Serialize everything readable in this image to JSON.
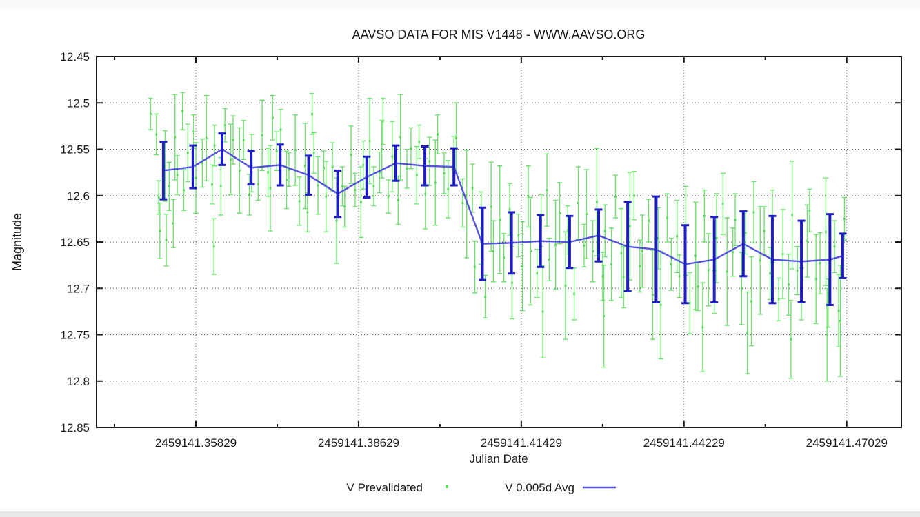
{
  "page": {
    "background": "#ffffff",
    "top_strip_color": "#fafafa",
    "bottom_strip_color": "#e9e9e9",
    "bottom_strip_border": "#c9c9c9"
  },
  "colors": {
    "axis": "#1a1a1a",
    "grid": "#555555",
    "green_point": "#55dd55",
    "green_marker": "#44d444",
    "blue_bar": "#1e1ec0",
    "blue_line": "#5353de"
  },
  "chart_data": {
    "type": "scatter",
    "title": "AAVSO DATA FOR MIS V1448 - WWW.AAVSO.ORG",
    "xlabel": "Julian Date",
    "ylabel": "Magnitude",
    "grid": true,
    "y_inverted": true,
    "jd_base": 2459141,
    "xlim": [
      0.3412,
      0.4797
    ],
    "ylim": [
      12.45,
      12.85
    ],
    "x_ticks": {
      "values": [
        0.35829,
        0.38629,
        0.41429,
        0.44229,
        0.47029
      ],
      "labels": [
        "2459141.35829",
        "2459141.38629",
        "2459141.41429",
        "2459141.44229",
        "2459141.47029"
      ]
    },
    "x_minor_ticks": [
      0.34429,
      0.37229,
      0.40029,
      0.42829,
      0.45629
    ],
    "y_ticks": {
      "values": [
        12.45,
        12.5,
        12.55,
        12.6,
        12.65,
        12.7,
        12.75,
        12.8,
        12.85
      ],
      "labels": [
        "12.45",
        "12.5",
        "12.55",
        "12.6",
        "12.65",
        "12.7",
        "12.75",
        "12.8",
        "12.85"
      ]
    },
    "legend": {
      "position": "below-xlabel",
      "items": [
        {
          "label": "V Prevalidated",
          "marker": "point",
          "color": "#55dd55"
        },
        {
          "label": "V 0.005d Avg",
          "marker": "line",
          "color": "#5353de"
        }
      ]
    },
    "series": [
      {
        "name": "V Prevalidated",
        "style": "points-with-errorbars",
        "color": "#55dd55",
        "jd": [
          0.3505,
          0.3515,
          0.3519,
          0.3521,
          0.353,
          0.3532,
          0.3537,
          0.3544,
          0.3547,
          0.3551,
          0.356,
          0.3562,
          0.3569,
          0.3579,
          0.3583,
          0.3594,
          0.3601,
          0.3611,
          0.3614,
          0.3615,
          0.3626,
          0.3633,
          0.3643,
          0.3647,
          0.3658,
          0.3665,
          0.3675,
          0.3679,
          0.369,
          0.3697,
          0.3707,
          0.3711,
          0.3715,
          0.3722,
          0.3729,
          0.3739,
          0.3743,
          0.3754,
          0.3761,
          0.3771,
          0.3775,
          0.3783,
          0.3786,
          0.3793,
          0.3803,
          0.3807,
          0.3818,
          0.3825,
          0.3835,
          0.3839,
          0.385,
          0.3857,
          0.3867,
          0.3871,
          0.3882,
          0.3889,
          0.3899,
          0.3903,
          0.3905,
          0.3914,
          0.3921,
          0.3931,
          0.3935,
          0.3946,
          0.3953,
          0.3963,
          0.3967,
          0.3978,
          0.3985,
          0.3995,
          0.3999,
          0.401,
          0.4017,
          0.4027,
          0.4031,
          0.4042,
          0.4049,
          0.4059,
          0.4063,
          0.4074,
          0.4081,
          0.4091,
          0.4095,
          0.4106,
          0.4113,
          0.4123,
          0.4127,
          0.4138,
          0.4145,
          0.4155,
          0.4159,
          0.417,
          0.4177,
          0.418,
          0.4187,
          0.4191,
          0.4202,
          0.4209,
          0.4219,
          0.4223,
          0.4234,
          0.4241,
          0.4251,
          0.4255,
          0.4266,
          0.4273,
          0.4283,
          0.4285,
          0.4287,
          0.4298,
          0.4305,
          0.4315,
          0.4319,
          0.433,
          0.4337,
          0.4347,
          0.4351,
          0.4362,
          0.4369,
          0.4379,
          0.4383,
          0.4394,
          0.4401,
          0.4411,
          0.4415,
          0.4426,
          0.4433,
          0.4443,
          0.4447,
          0.4455,
          0.4458,
          0.4465,
          0.4475,
          0.4479,
          0.449,
          0.4497,
          0.4507,
          0.4511,
          0.4522,
          0.4529,
          0.4532,
          0.4539,
          0.4543,
          0.4554,
          0.4561,
          0.4571,
          0.4575,
          0.4586,
          0.4593,
          0.4603,
          0.4607,
          0.4609,
          0.4618,
          0.4625,
          0.4635,
          0.4639,
          0.465,
          0.4657,
          0.4667,
          0.4669,
          0.4671,
          0.4682,
          0.4689,
          0.4692,
          0.4699
        ],
        "mag": [
          12.512,
          12.534,
          12.602,
          12.638,
          12.568,
          12.648,
          12.59,
          12.63,
          12.537,
          12.578,
          12.509,
          12.594,
          12.554,
          12.531,
          12.581,
          12.565,
          12.538,
          12.588,
          12.655,
          12.546,
          12.59,
          12.524,
          12.561,
          12.54,
          12.573,
          12.54,
          12.599,
          12.565,
          12.587,
          12.535,
          12.575,
          12.592,
          12.516,
          12.552,
          12.529,
          12.583,
          12.572,
          12.551,
          12.606,
          12.568,
          12.618,
          12.512,
          12.554,
          12.589,
          12.57,
          12.601,
          12.569,
          12.627,
          12.59,
          12.612,
          12.556,
          12.594,
          12.607,
          12.567,
          12.541,
          12.59,
          12.575,
          12.55,
          12.52,
          12.601,
          12.558,
          12.605,
          12.537,
          12.571,
          12.549,
          12.578,
          12.542,
          12.598,
          12.563,
          12.586,
          12.534,
          12.576,
          12.593,
          12.554,
          12.538,
          12.608,
          12.609,
          12.592,
          12.677,
          12.635,
          12.709,
          12.612,
          12.66,
          12.626,
          12.667,
          12.615,
          12.694,
          12.643,
          12.676,
          12.601,
          12.66,
          12.684,
          12.627,
          12.725,
          12.594,
          12.669,
          12.653,
          12.619,
          12.697,
          12.637,
          12.706,
          12.608,
          12.654,
          12.62,
          12.66,
          12.607,
          12.687,
          12.73,
          12.638,
          12.674,
          12.601,
          12.662,
          12.688,
          12.633,
          12.6,
          12.676,
          12.66,
          12.627,
          12.707,
          12.646,
          12.718,
          12.624,
          12.674,
          12.644,
          12.687,
          12.638,
          12.716,
          12.665,
          12.698,
          12.742,
          12.622,
          12.68,
          12.704,
          12.646,
          12.609,
          12.682,
          12.661,
          12.626,
          12.7,
          12.64,
          12.748,
          12.714,
          12.618,
          12.67,
          12.638,
          12.684,
          12.633,
          12.712,
          12.663,
          12.696,
          12.755,
          12.621,
          12.681,
          12.706,
          12.649,
          12.616,
          12.69,
          12.673,
          12.639,
          12.75,
          12.716,
          12.655,
          12.724,
          12.735,
          12.625
        ],
        "err": [
          0.017,
          0.022,
          0.018,
          0.03,
          0.038,
          0.028,
          0.026,
          0.026,
          0.046,
          0.021,
          0.02,
          0.022,
          0.031,
          0.018,
          0.038,
          0.026,
          0.046,
          0.021,
          0.03,
          0.022,
          0.031,
          0.018,
          0.038,
          0.026,
          0.046,
          0.021,
          0.022,
          0.031,
          0.018,
          0.038,
          0.026,
          0.046,
          0.024,
          0.021,
          0.022,
          0.031,
          0.018,
          0.038,
          0.026,
          0.046,
          0.021,
          0.022,
          0.022,
          0.031,
          0.018,
          0.038,
          0.026,
          0.046,
          0.021,
          0.022,
          0.031,
          0.018,
          0.038,
          0.026,
          0.046,
          0.021,
          0.022,
          0.031,
          0.025,
          0.018,
          0.038,
          0.026,
          0.046,
          0.021,
          0.022,
          0.031,
          0.018,
          0.038,
          0.026,
          0.046,
          0.021,
          0.022,
          0.031,
          0.018,
          0.038,
          0.026,
          0.058,
          0.026,
          0.028,
          0.039,
          0.023,
          0.048,
          0.033,
          0.058,
          0.026,
          0.028,
          0.039,
          0.023,
          0.048,
          0.033,
          0.058,
          0.026,
          0.028,
          0.05,
          0.039,
          0.023,
          0.048,
          0.033,
          0.058,
          0.026,
          0.028,
          0.039,
          0.023,
          0.048,
          0.033,
          0.058,
          0.026,
          0.055,
          0.028,
          0.039,
          0.023,
          0.048,
          0.033,
          0.058,
          0.026,
          0.028,
          0.039,
          0.023,
          0.048,
          0.033,
          0.058,
          0.026,
          0.028,
          0.039,
          0.023,
          0.048,
          0.033,
          0.058,
          0.026,
          0.048,
          0.028,
          0.039,
          0.023,
          0.048,
          0.033,
          0.058,
          0.026,
          0.028,
          0.039,
          0.023,
          0.044,
          0.048,
          0.033,
          0.058,
          0.026,
          0.028,
          0.039,
          0.023,
          0.048,
          0.033,
          0.042,
          0.058,
          0.026,
          0.028,
          0.039,
          0.023,
          0.048,
          0.033,
          0.058,
          0.05,
          0.026,
          0.028,
          0.039,
          0.06,
          0.023
        ]
      },
      {
        "name": "V 0.005d Avg",
        "style": "line-with-errorbars",
        "line_color": "#5353de",
        "bar_color": "#1e1ec0",
        "jd": [
          0.3527,
          0.3578,
          0.3628,
          0.3678,
          0.3728,
          0.3777,
          0.3827,
          0.3877,
          0.3927,
          0.3977,
          0.4027,
          0.4076,
          0.4126,
          0.4176,
          0.4226,
          0.4276,
          0.4326,
          0.4375,
          0.4425,
          0.4475,
          0.4525,
          0.4575,
          0.4625,
          0.4674,
          0.4696
        ],
        "mag": [
          12.573,
          12.569,
          12.55,
          12.57,
          12.567,
          12.578,
          12.598,
          12.58,
          12.565,
          12.568,
          12.569,
          12.652,
          12.651,
          12.649,
          12.65,
          12.643,
          12.655,
          12.658,
          12.674,
          12.669,
          12.652,
          12.669,
          12.671,
          12.669,
          12.665
        ],
        "err": [
          0.031,
          0.023,
          0.017,
          0.018,
          0.022,
          0.021,
          0.025,
          0.022,
          0.019,
          0.021,
          0.02,
          0.039,
          0.033,
          0.028,
          0.028,
          0.028,
          0.048,
          0.057,
          0.042,
          0.046,
          0.035,
          0.047,
          0.044,
          0.049,
          0.024
        ]
      }
    ]
  }
}
